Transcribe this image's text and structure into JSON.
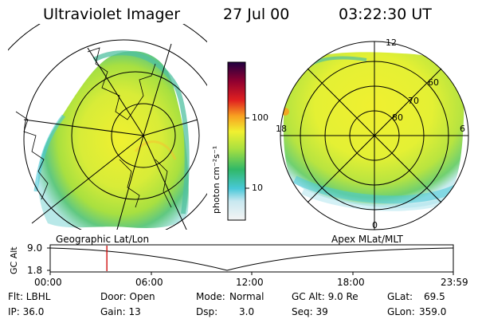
{
  "header": {
    "title": "Ultraviolet Imager",
    "date": "27 Jul 00",
    "time": "03:22:30 UT"
  },
  "left_panel": {
    "caption": "Geographic Lat/Lon"
  },
  "right_panel": {
    "caption": "Apex MLat/MLT",
    "mlt_labels": {
      "top": "12",
      "left": "18",
      "right": "6",
      "bottom": "0"
    },
    "lat_labels": [
      "60",
      "70",
      "80"
    ]
  },
  "colorbar": {
    "unit_label": "photon cm⁻²s⁻¹",
    "ticks": [
      "100",
      "10"
    ],
    "colors": [
      "#e8e8e8",
      "#48c8d8",
      "#30b868",
      "#a8e040",
      "#f0f030",
      "#f8a020",
      "#e02020",
      "#900030",
      "#200040"
    ]
  },
  "timeline": {
    "ylabel": "GC Alt",
    "ymax": "9.0",
    "ymin": "1.8",
    "xticks": [
      "00:00",
      "06:00",
      "12:00",
      "18:00",
      "23:59"
    ],
    "marker_time": "03:22:30",
    "marker_color": "#cc0000"
  },
  "footer": {
    "flt": "Flt: LBHL",
    "ip": "IP: 36.0",
    "door": "Door: Open",
    "gain": "Gain: 13",
    "mode_label": "Mode:",
    "mode_value": "Normal",
    "dsp_label": "Dsp:",
    "dsp_value": "3.0",
    "gc_alt": "GC Alt: 9.0 Re",
    "seq": "Seq: 39",
    "glat_label": "GLat:",
    "glat_value": "69.5",
    "glon_label": "GLon:",
    "glon_value": "359.0"
  }
}
